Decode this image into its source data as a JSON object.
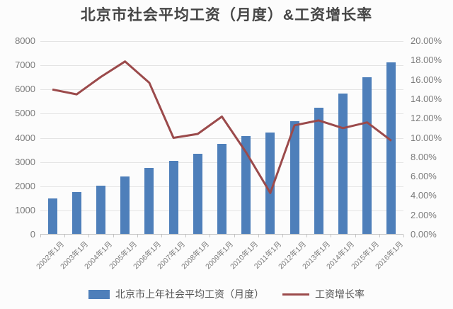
{
  "chart_data": {
    "type": "combo",
    "title": "北京市社会平均工资（月度）&工资增长率",
    "categories": [
      "2002年1月",
      "2003年1月",
      "2004年1月",
      "2005年1月",
      "2006年1月",
      "2007年1月",
      "2008年1月",
      "2009年1月",
      "2010年1月",
      "2011年1月",
      "2012年1月",
      "2013年1月",
      "2014年1月",
      "2015年1月",
      "2016年1月"
    ],
    "series": [
      {
        "name": "北京市上年社会平均工资（月度）",
        "chart_type": "bar",
        "axis": "left",
        "color": "#4e7fba",
        "values": [
          1480,
          1727,
          2004,
          2362,
          2734,
          3008,
          3322,
          3726,
          4037,
          4201,
          4672,
          5223,
          5793,
          6463,
          7086
        ]
      },
      {
        "name": "工资增长率",
        "chart_type": "line",
        "axis": "right",
        "color": "#9b4a4b",
        "unit": "%",
        "values": [
          15.0,
          14.5,
          16.3,
          17.9,
          15.7,
          10.0,
          10.4,
          12.2,
          8.5,
          4.3,
          11.3,
          11.8,
          11.0,
          11.6,
          9.7
        ]
      }
    ],
    "left_axis": {
      "min": 0,
      "max": 8000,
      "step": 1000,
      "ticks": [
        "8000",
        "7000",
        "6000",
        "5000",
        "4000",
        "3000",
        "2000",
        "1000",
        "0"
      ]
    },
    "right_axis": {
      "min": 0,
      "max": 20,
      "step": 2,
      "ticks": [
        "20.00%",
        "18.00%",
        "16.00%",
        "14.00%",
        "12.00%",
        "10.00%",
        "8.00%",
        "6.00%",
        "4.00%",
        "2.00%",
        "0.00%"
      ]
    },
    "grid": true,
    "legend_position": "bottom"
  }
}
